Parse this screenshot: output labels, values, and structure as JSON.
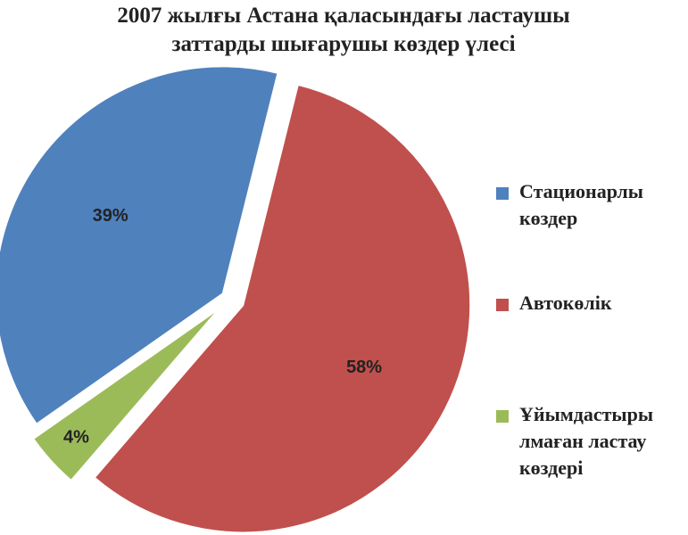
{
  "chart_data": {
    "type": "pie",
    "title": "2007 жылғы Астана қаласындағы ластаушы заттарды шығарушы көздер үлесі",
    "categories": [
      "Стационарлы көздер",
      "Автокөлік",
      "Ұйымдастырылмаған ластау көздері"
    ],
    "values": [
      39,
      58,
      4
    ],
    "value_labels": [
      "39%",
      "58%",
      "4%"
    ],
    "colors": [
      "#4f81bd",
      "#c0504d",
      "#9bbb59"
    ],
    "legend": "right"
  }
}
